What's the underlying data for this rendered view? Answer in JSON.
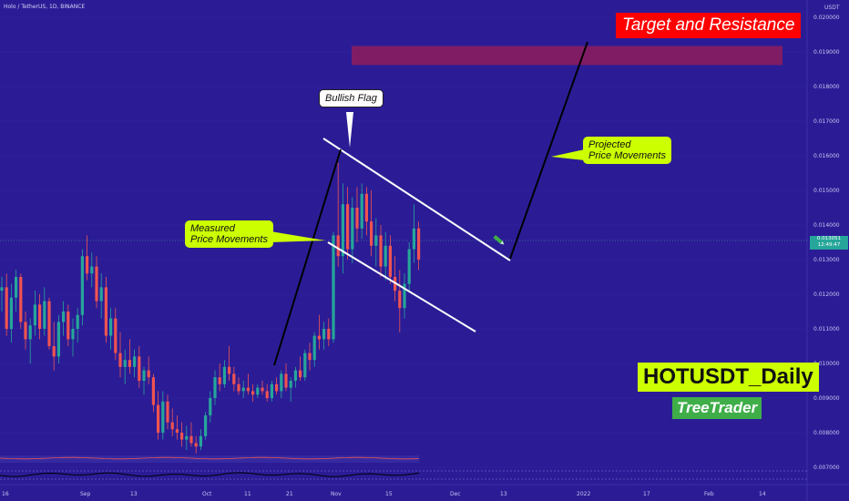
{
  "header": {
    "symbol_line": "Holo / TetherUS, 1D, BINANCE"
  },
  "price_axis": {
    "currency": "USDT",
    "ticks": [
      "0.020000",
      "0.019000",
      "0.018000",
      "0.017000",
      "0.016000",
      "0.015000",
      "0.014000",
      "0.013000",
      "0.012000",
      "0.011000",
      "0.010000",
      "0.009000",
      "0.008000",
      "0.007000"
    ],
    "last_price": "0.013051",
    "countdown": "12:49:47"
  },
  "time_axis": {
    "ticks": [
      "16",
      "Sep",
      "13",
      "Oct",
      "11",
      "21",
      "Nov",
      "15",
      "Dec",
      "13",
      "2022",
      "17",
      "Feb",
      "14"
    ]
  },
  "annotations": {
    "target": "Target and Resistance",
    "bullish_flag": "Bullish Flag",
    "projected": "Projected\nPrice Movements",
    "measured": "Measured\nPrice Movements",
    "pair_label": "HOTUSDT_Daily",
    "author": "TreeTrader"
  },
  "colors": {
    "background": "#2b1c96",
    "up": "#26a69a",
    "down": "#ef5350",
    "target_zone": "#8a1d5e",
    "title_red": "#ff0000",
    "label_lime": "#ccff00",
    "author_green": "#3fae49"
  },
  "chart_data": {
    "type": "candlestick",
    "ylabel": "USDT",
    "ylim": [
      0.0065,
      0.0205
    ],
    "target_zone": [
      0.01862,
      0.01917
    ],
    "last_price": 0.013051,
    "candles": [
      [
        "16",
        0.0121,
        0.0125,
        0.0115,
        0.0122
      ],
      [
        "",
        0.0122,
        0.0126,
        0.0108,
        0.011
      ],
      [
        "",
        0.011,
        0.0123,
        0.0106,
        0.0119
      ],
      [
        "",
        0.0119,
        0.0127,
        0.0115,
        0.0125
      ],
      [
        "",
        0.0125,
        0.0126,
        0.011,
        0.0112
      ],
      [
        "",
        0.0112,
        0.0115,
        0.0104,
        0.0107
      ],
      [
        "",
        0.0107,
        0.0113,
        0.01,
        0.0111
      ],
      [
        "",
        0.0111,
        0.0121,
        0.0108,
        0.0117
      ],
      [
        "",
        0.0117,
        0.012,
        0.0107,
        0.011
      ],
      [
        "",
        0.011,
        0.0122,
        0.0108,
        0.0118
      ],
      [
        "",
        0.0118,
        0.0119,
        0.0104,
        0.0105
      ],
      [
        "",
        0.0105,
        0.0112,
        0.0098,
        0.0102
      ],
      [
        "",
        0.0102,
        0.0114,
        0.01,
        0.0112
      ],
      [
        "",
        0.0112,
        0.0118,
        0.0108,
        0.0115
      ],
      [
        "",
        0.0115,
        0.0117,
        0.0105,
        0.0107
      ],
      [
        "",
        0.0107,
        0.0113,
        0.0102,
        0.011
      ],
      [
        "",
        0.011,
        0.0116,
        0.0106,
        0.0114
      ],
      [
        "",
        0.0114,
        0.0133,
        0.0111,
        0.0131
      ],
      [
        "",
        0.0131,
        0.0137,
        0.0124,
        0.0126
      ],
      [
        "",
        0.0126,
        0.0132,
        0.0122,
        0.0128
      ],
      [
        "",
        0.0128,
        0.0131,
        0.0116,
        0.0118
      ],
      [
        "",
        0.0118,
        0.0126,
        0.0113,
        0.0122
      ],
      [
        "",
        0.0122,
        0.0125,
        0.0106,
        0.0108
      ],
      [
        "Sep",
        0.0108,
        0.0116,
        0.0104,
        0.0113
      ],
      [
        "",
        0.0113,
        0.0116,
        0.0101,
        0.0103
      ],
      [
        "",
        0.0103,
        0.0109,
        0.0096,
        0.0099
      ],
      [
        "",
        0.0099,
        0.0104,
        0.0094,
        0.0101
      ],
      [
        "",
        0.0101,
        0.0107,
        0.0097,
        0.0099
      ],
      [
        "",
        0.0099,
        0.0104,
        0.0096,
        0.0102
      ],
      [
        "",
        0.0102,
        0.0105,
        0.0093,
        0.0095
      ],
      [
        "13",
        0.0095,
        0.0099,
        0.0091,
        0.0098
      ],
      [
        "",
        0.0098,
        0.0102,
        0.0094,
        0.0096
      ],
      [
        "",
        0.0096,
        0.0097,
        0.0086,
        0.0088
      ],
      [
        "",
        0.0088,
        0.0092,
        0.0078,
        0.008
      ],
      [
        "",
        0.008,
        0.0092,
        0.0078,
        0.0089
      ],
      [
        "",
        0.0089,
        0.0091,
        0.0081,
        0.0083
      ],
      [
        "",
        0.0083,
        0.0087,
        0.0079,
        0.0081
      ],
      [
        "",
        0.0081,
        0.0085,
        0.0078,
        0.008
      ],
      [
        "",
        0.008,
        0.0083,
        0.0076,
        0.0078
      ],
      [
        "",
        0.0078,
        0.0082,
        0.0075,
        0.0079
      ],
      [
        "",
        0.0079,
        0.0083,
        0.0076,
        0.0077
      ],
      [
        "",
        0.0077,
        0.0079,
        0.0074,
        0.0076
      ],
      [
        "",
        0.0076,
        0.0081,
        0.0075,
        0.0079
      ],
      [
        "",
        0.0079,
        0.0086,
        0.0078,
        0.0085
      ],
      [
        "Oct",
        0.0085,
        0.0092,
        0.0083,
        0.009
      ],
      [
        "",
        0.009,
        0.0098,
        0.0088,
        0.0096
      ],
      [
        "",
        0.0096,
        0.01,
        0.0092,
        0.0094
      ],
      [
        "",
        0.0094,
        0.0101,
        0.0093,
        0.0099
      ],
      [
        "",
        0.0099,
        0.0105,
        0.0095,
        0.0097
      ],
      [
        "",
        0.0097,
        0.0099,
        0.0092,
        0.0094
      ],
      [
        "",
        0.0094,
        0.0096,
        0.0091,
        0.0092
      ],
      [
        "",
        0.0092,
        0.0095,
        0.009,
        0.0093
      ],
      [
        "11",
        0.0093,
        0.0097,
        0.0091,
        0.0092
      ],
      [
        "",
        0.0092,
        0.0094,
        0.0089,
        0.0091
      ],
      [
        "",
        0.0091,
        0.0094,
        0.009,
        0.0093
      ],
      [
        "",
        0.0093,
        0.0095,
        0.0091,
        0.0092
      ],
      [
        "",
        0.0092,
        0.0094,
        0.0089,
        0.009
      ],
      [
        "",
        0.009,
        0.0095,
        0.0089,
        0.0094
      ],
      [
        "",
        0.0094,
        0.0096,
        0.0091,
        0.0092
      ],
      [
        "",
        0.0092,
        0.0098,
        0.009,
        0.0097
      ],
      [
        "",
        0.0097,
        0.01,
        0.0092,
        0.0093
      ],
      [
        "21",
        0.0093,
        0.0096,
        0.0089,
        0.0095
      ],
      [
        "",
        0.0095,
        0.0099,
        0.0093,
        0.0098
      ],
      [
        "",
        0.0098,
        0.0102,
        0.0095,
        0.0096
      ],
      [
        "",
        0.0096,
        0.0104,
        0.0095,
        0.0103
      ],
      [
        "",
        0.0103,
        0.0106,
        0.0098,
        0.0101
      ],
      [
        "",
        0.0101,
        0.0109,
        0.0099,
        0.0108
      ],
      [
        "",
        0.0108,
        0.0114,
        0.0104,
        0.0107
      ],
      [
        "",
        0.0107,
        0.0112,
        0.0104,
        0.011
      ],
      [
        "",
        0.011,
        0.0113,
        0.0105,
        0.0107
      ],
      [
        "Nov",
        0.0107,
        0.0138,
        0.0106,
        0.0137
      ],
      [
        "",
        0.0137,
        0.0158,
        0.0128,
        0.0131
      ],
      [
        "",
        0.0131,
        0.0152,
        0.0126,
        0.0146
      ],
      [
        "",
        0.0146,
        0.0151,
        0.013,
        0.0133
      ],
      [
        "",
        0.0133,
        0.0148,
        0.0129,
        0.0145
      ],
      [
        "",
        0.0145,
        0.0151,
        0.0135,
        0.0139
      ],
      [
        "",
        0.0139,
        0.0152,
        0.0136,
        0.0149
      ],
      [
        "",
        0.0149,
        0.0151,
        0.0137,
        0.0141
      ],
      [
        "",
        0.0141,
        0.015,
        0.0131,
        0.0134
      ],
      [
        "",
        0.0134,
        0.0142,
        0.0128,
        0.0137
      ],
      [
        "",
        0.0137,
        0.014,
        0.0125,
        0.0128
      ],
      [
        "",
        0.0128,
        0.0138,
        0.0124,
        0.0134
      ],
      [
        "15",
        0.0134,
        0.0137,
        0.0123,
        0.0125
      ],
      [
        "",
        0.0125,
        0.0131,
        0.0118,
        0.0121
      ],
      [
        "",
        0.0121,
        0.0127,
        0.0109,
        0.0116
      ],
      [
        "",
        0.0116,
        0.0126,
        0.0113,
        0.0123
      ],
      [
        "",
        0.0123,
        0.0135,
        0.0121,
        0.0133
      ],
      [
        "",
        0.0133,
        0.0146,
        0.0129,
        0.0139
      ],
      [
        "",
        0.0139,
        0.0141,
        0.0127,
        0.013
      ]
    ],
    "trendlines": [
      {
        "name": "flag-upper",
        "from": [
          "",
          0.0161
        ],
        "to": [
          "",
          0.0125
        ]
      },
      {
        "name": "flag-lower",
        "from": [
          "",
          0.013
        ],
        "to": [
          "",
          0.0105
        ]
      },
      {
        "name": "measured-move",
        "from": [
          "",
          0.0093
        ],
        "to": [
          "",
          0.0157
        ]
      },
      {
        "name": "projection-rise",
        "from": [
          "",
          0.0125
        ],
        "to": [
          "",
          0.0193
        ]
      }
    ]
  }
}
